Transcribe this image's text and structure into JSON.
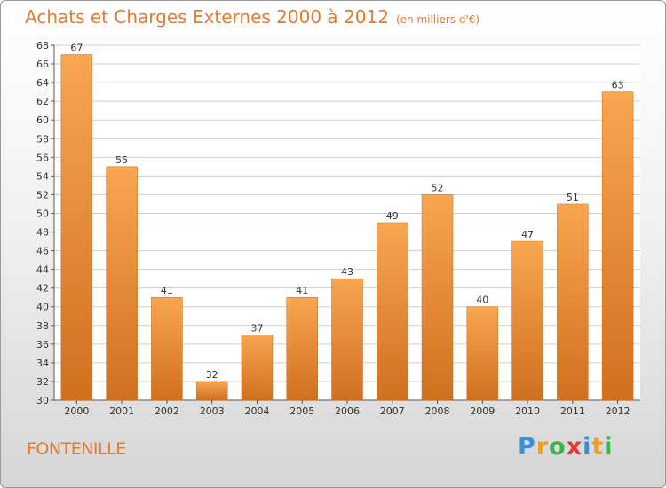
{
  "title": "Achats et Charges Externes 2000 à 2012",
  "unit_label": "(en milliers d'€)",
  "town": "FONTENILLE",
  "logo": {
    "letters": [
      "P",
      "r",
      "o",
      "x",
      "i",
      "t",
      "i"
    ],
    "colors": [
      "#3b8fd6",
      "#f0a020",
      "#3bb54a",
      "#e23a3a",
      "#3b8fd6",
      "#f0a020",
      "#3bb54a"
    ]
  },
  "colors": {
    "accent": "#e87a2e",
    "bar_light": "#f8a650",
    "bar_dark": "#d0701e",
    "grid": "#cfcfcf"
  },
  "chart_data": {
    "type": "bar",
    "categories": [
      "2000",
      "2001",
      "2002",
      "2003",
      "2004",
      "2005",
      "2006",
      "2007",
      "2008",
      "2009",
      "2010",
      "2011",
      "2012"
    ],
    "values": [
      67,
      55,
      41,
      32,
      37,
      41,
      43,
      49,
      52,
      40,
      47,
      51,
      63
    ],
    "ylim": [
      30,
      68
    ],
    "yticks": [
      30,
      32,
      34,
      36,
      38,
      40,
      42,
      44,
      46,
      48,
      50,
      52,
      54,
      56,
      58,
      60,
      62,
      64,
      66,
      68
    ],
    "grid": true,
    "title": "Achats et Charges Externes 2000 à 2012",
    "xlabel": "",
    "ylabel": ""
  }
}
